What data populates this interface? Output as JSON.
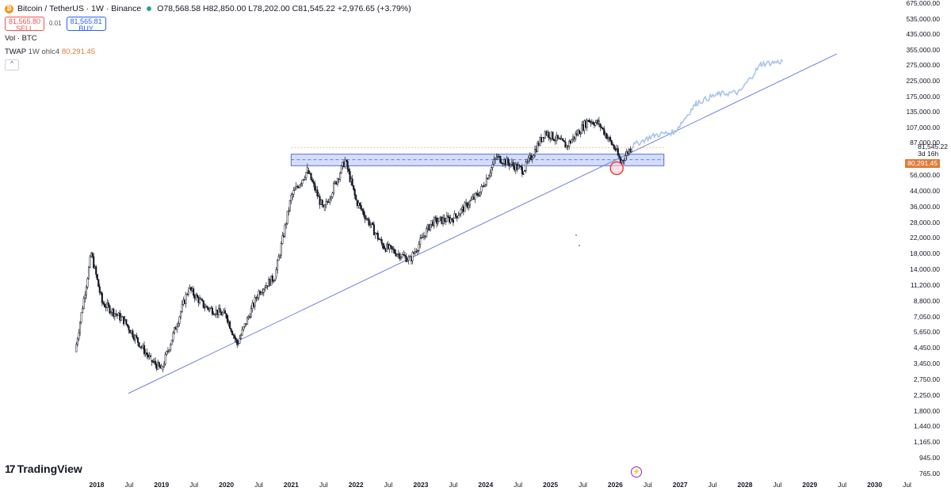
{
  "symbol": {
    "name": "Bitcoin / TetherUS · 1W · Binance",
    "ohlc": "O78,568.58 H82,850.00 L78,202.00 C81,545.22 +2,976.65 (+3.79%)",
    "icon": "bitcoin-coin-icon"
  },
  "trade": {
    "sell_price": "81,565.80",
    "sell_label": "SELL",
    "spread": "0.01",
    "buy_price": "81,565.81",
    "buy_label": "BUY"
  },
  "indicators": {
    "vol": "Vol · BTC",
    "twap_label": "TWAP",
    "twap_params": "1W ohlc4",
    "twap_value": "80,291.45",
    "collapse_glyph": "^"
  },
  "price_axis": {
    "ticks": [
      "675,000.00",
      "535,000.00",
      "435,000.00",
      "355,000.00",
      "275,000.00",
      "225,000.00",
      "175,000.00",
      "135,000.00",
      "107,000.00",
      "87,000.00",
      "56,000.00",
      "44,000.00",
      "36,000.00",
      "28,000.00",
      "22,000.00",
      "18,000.00",
      "14,000.00",
      "11,200.00",
      "8,800.00",
      "7,050.00",
      "5,650.00",
      "4,450.00",
      "3,450.00",
      "2,750.00",
      "2,250.00",
      "1,800.00",
      "1,440.00",
      "1,165.00",
      "945.00",
      "765.00"
    ],
    "current_price": "81,545.22",
    "countdown": "3d 16h",
    "twap_tag": "80,291.45"
  },
  "time_axis": [
    {
      "label": "2018",
      "year": true
    },
    {
      "label": "Jul",
      "year": false
    },
    {
      "label": "2019",
      "year": true
    },
    {
      "label": "Jul",
      "year": false
    },
    {
      "label": "2020",
      "year": true
    },
    {
      "label": "Jul",
      "year": false
    },
    {
      "label": "2021",
      "year": true
    },
    {
      "label": "Jul",
      "year": false
    },
    {
      "label": "2022",
      "year": true
    },
    {
      "label": "Jul",
      "year": false
    },
    {
      "label": "2023",
      "year": true
    },
    {
      "label": "Jul",
      "year": false
    },
    {
      "label": "2024",
      "year": true
    },
    {
      "label": "Jul",
      "year": false
    },
    {
      "label": "2025",
      "year": true
    },
    {
      "label": "Jul",
      "year": false
    },
    {
      "label": "2026",
      "year": true
    },
    {
      "label": "Jul",
      "year": false
    },
    {
      "label": "2027",
      "year": true
    },
    {
      "label": "Jul",
      "year": false
    },
    {
      "label": "2028",
      "year": true
    },
    {
      "label": "Jul",
      "year": false
    },
    {
      "label": "2029",
      "year": true
    },
    {
      "label": "Jul",
      "year": false
    },
    {
      "label": "2030",
      "year": true
    },
    {
      "label": "Jul",
      "year": false
    }
  ],
  "branding": {
    "logo_text": "TradingView",
    "logo_mark": "17"
  },
  "colors": {
    "candle": "#131722",
    "trendline": "#6c7ee1",
    "zone_fill": "#c9d6f7",
    "zone_border": "#5b6fd6",
    "projection": "#a9c4ec",
    "circle": "#e53935",
    "twap": "#e07b39"
  },
  "chart_data": {
    "type": "line",
    "title": "",
    "xlabel": "",
    "ylabel": "",
    "yscale": "log",
    "x": [
      "2017-09",
      "2017-12",
      "2018-02",
      "2018-06",
      "2018-11",
      "2019-01",
      "2019-06",
      "2019-09",
      "2020-01",
      "2020-03",
      "2020-07",
      "2020-10",
      "2021-01",
      "2021-04",
      "2021-07",
      "2021-11",
      "2022-01",
      "2022-06",
      "2022-11",
      "2023-03",
      "2023-07",
      "2023-12",
      "2024-03",
      "2024-08",
      "2024-12",
      "2025-04",
      "2025-08",
      "2025-10",
      "2026-01",
      "2026-02",
      "2026-04"
    ],
    "series": [
      {
        "values": [
          4500,
          18000,
          9000,
          7000,
          4000,
          3500,
          11000,
          8500,
          7500,
          5000,
          10500,
          13000,
          40000,
          58000,
          33000,
          67000,
          38000,
          20000,
          16500,
          28000,
          29500,
          43000,
          70000,
          58000,
          100000,
          82000,
          118000,
          112000,
          78000,
          65000,
          81545
        ]
      },
      {
        "values": [
          null,
          null,
          null,
          null,
          null,
          null,
          null,
          null,
          null,
          null,
          null,
          null,
          null,
          null,
          null,
          null,
          null,
          null,
          null,
          null,
          null,
          null,
          null,
          null,
          null,
          null,
          null,
          null,
          null,
          null,
          81545
        ]
      }
    ],
    "projection": {
      "x": [
        "2026-04",
        "2026-08",
        "2026-12",
        "2027-04",
        "2027-08",
        "2027-12",
        "2028-04",
        "2028-08"
      ],
      "values": [
        81545,
        95000,
        100000,
        150000,
        170000,
        175000,
        260000,
        270000
      ]
    },
    "support_trendline": {
      "from": {
        "x": "2018-12",
        "y": 3200
      },
      "to": {
        "x": "2029-06",
        "y": 300000
      }
    },
    "resistance_zone": {
      "from_x": "2021-01",
      "to_x": "2026-10",
      "low": 62000,
      "high": 73000
    },
    "highlight": {
      "x": "2026-02",
      "y": 64000
    },
    "current_price": 81545.22,
    "twap": 80291.45
  }
}
